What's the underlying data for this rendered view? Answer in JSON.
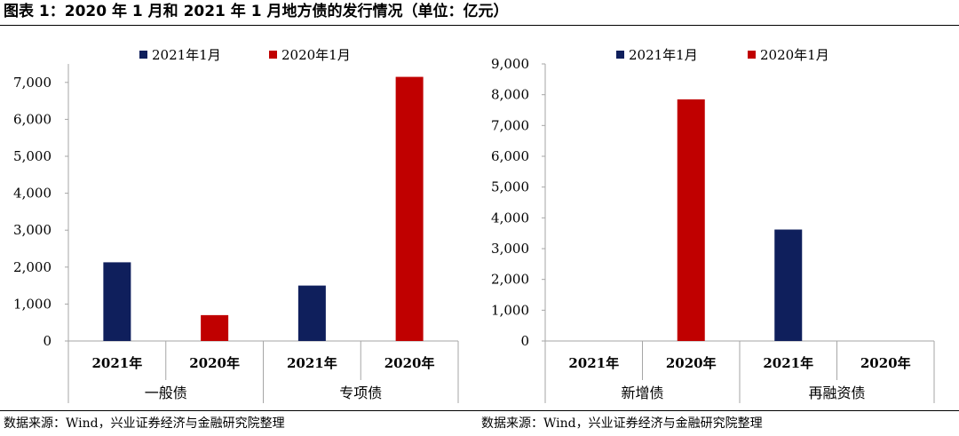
{
  "title": "图表 1：2020 年 1 月和 2021 年 1 月地方债的发行情况（单位：亿元）",
  "sources": [
    "数据来源：Wind，兴业证券经济与金融研究院整理",
    "数据来源：Wind，兴业证券经济与金融研究院整理"
  ],
  "colors": {
    "series_2021": "#0f1f5c",
    "series_2020": "#c00000",
    "axis": "#a6a6a6"
  },
  "chart_data": [
    {
      "type": "bar",
      "groups": [
        {
          "label": "一般债",
          "categories": [
            "2021年",
            "2020年"
          ]
        },
        {
          "label": "专项债",
          "categories": [
            "2021年",
            "2020年"
          ]
        }
      ],
      "series": [
        {
          "name": "2021年1月",
          "values": [
            2130,
            null,
            1500,
            null
          ]
        },
        {
          "name": "2020年1月",
          "values": [
            null,
            700,
            null,
            7150
          ]
        }
      ],
      "ylim": [
        0,
        7500
      ],
      "yticks": [
        "0",
        "1,000",
        "2,000",
        "3,000",
        "4,000",
        "5,000",
        "6,000",
        "7,000"
      ],
      "legend": "top"
    },
    {
      "type": "bar",
      "groups": [
        {
          "label": "新增债",
          "categories": [
            "2021年",
            "2020年"
          ]
        },
        {
          "label": "再融资债",
          "categories": [
            "2021年",
            "2020年"
          ]
        }
      ],
      "series": [
        {
          "name": "2021年1月",
          "values": [
            null,
            null,
            3620,
            null
          ]
        },
        {
          "name": "2020年1月",
          "values": [
            null,
            7850,
            null,
            null
          ]
        }
      ],
      "ylim": [
        0,
        9000
      ],
      "yticks": [
        "0",
        "1,000",
        "2,000",
        "3,000",
        "4,000",
        "5,000",
        "6,000",
        "7,000",
        "8,000",
        "9,000"
      ],
      "legend": "top"
    }
  ]
}
